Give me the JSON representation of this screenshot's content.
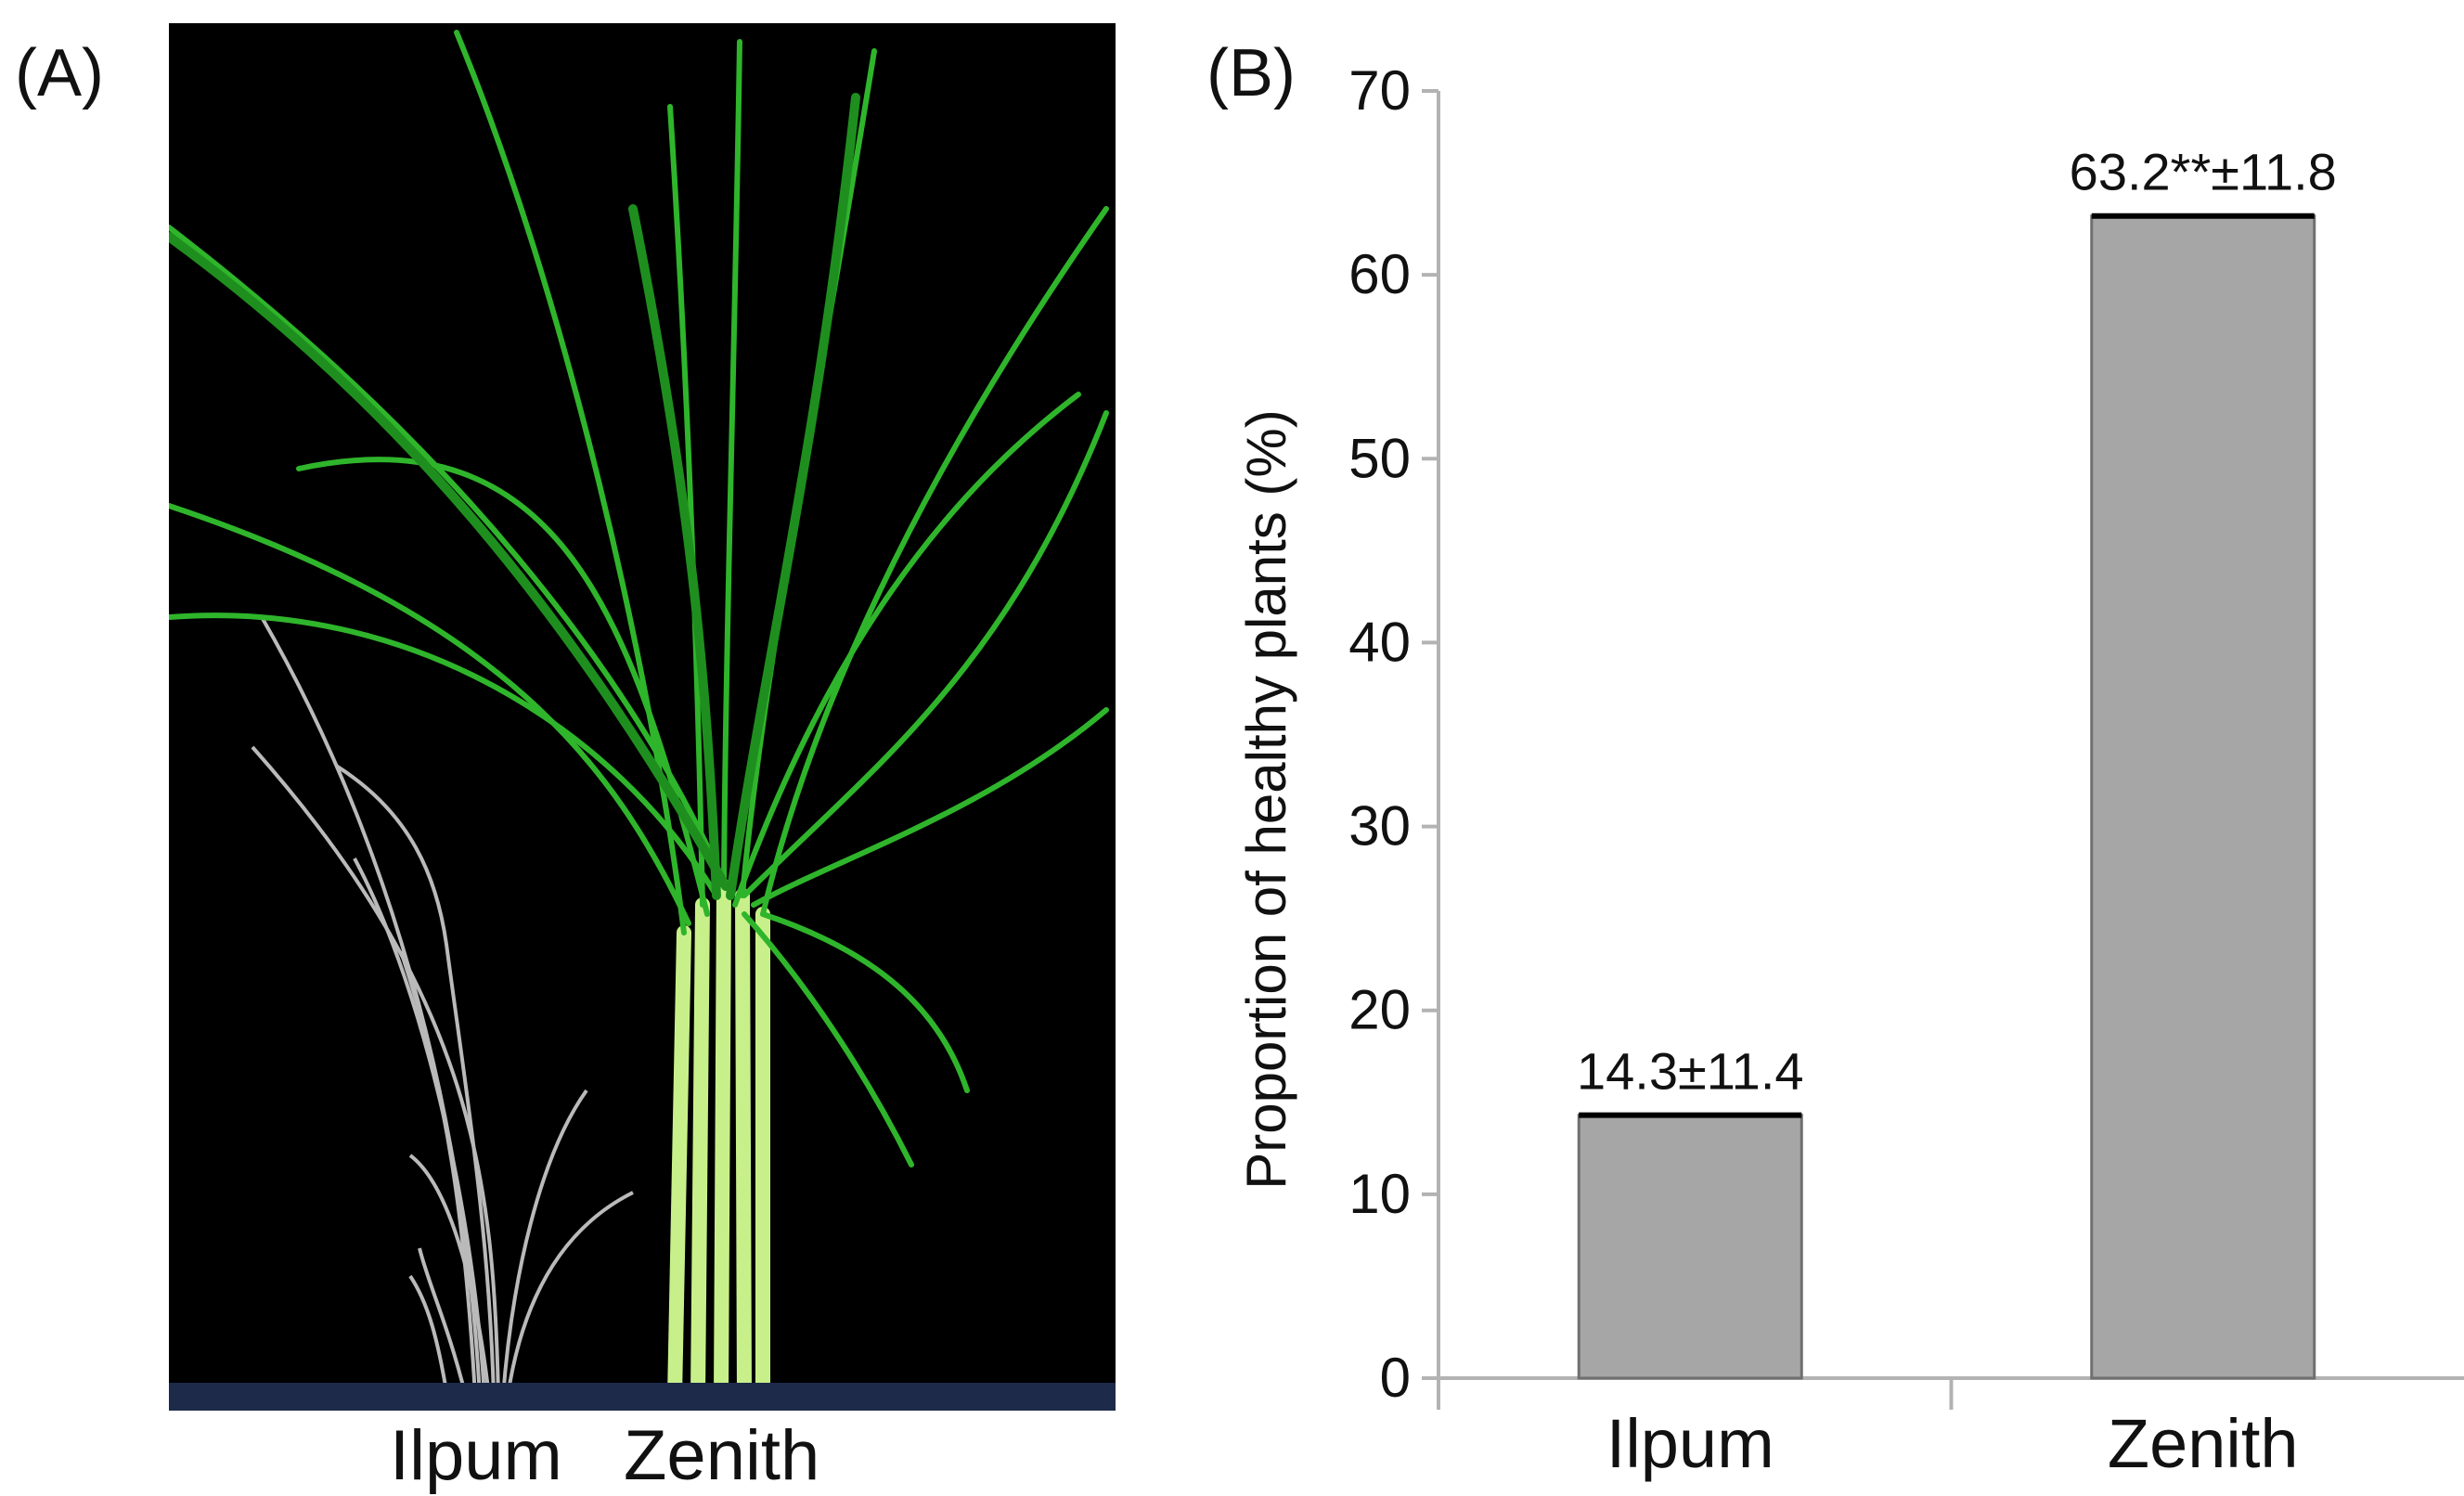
{
  "panels": {
    "a_label": "(A)",
    "b_label": "(B)"
  },
  "photo": {
    "caption_left": "Ilpum",
    "caption_right": "Zenith"
  },
  "colors": {
    "bar_fill": "#a6a6a6",
    "bar_top": "#000000",
    "axis": "#b3b3b3",
    "photo_bg": "#000000"
  },
  "chart_data": {
    "type": "bar",
    "categories": [
      "Ilpum",
      "Zenith"
    ],
    "values": [
      14.3,
      63.2
    ],
    "errors": [
      11.4,
      11.8
    ],
    "data_labels": [
      "14.3±11.4",
      "63.2**±11.8"
    ],
    "title": "",
    "xlabel": "",
    "ylabel": "Proportion of healthy plants (%)",
    "ylim": [
      0,
      70
    ],
    "yticks": [
      0,
      10,
      20,
      30,
      40,
      50,
      60,
      70
    ]
  }
}
